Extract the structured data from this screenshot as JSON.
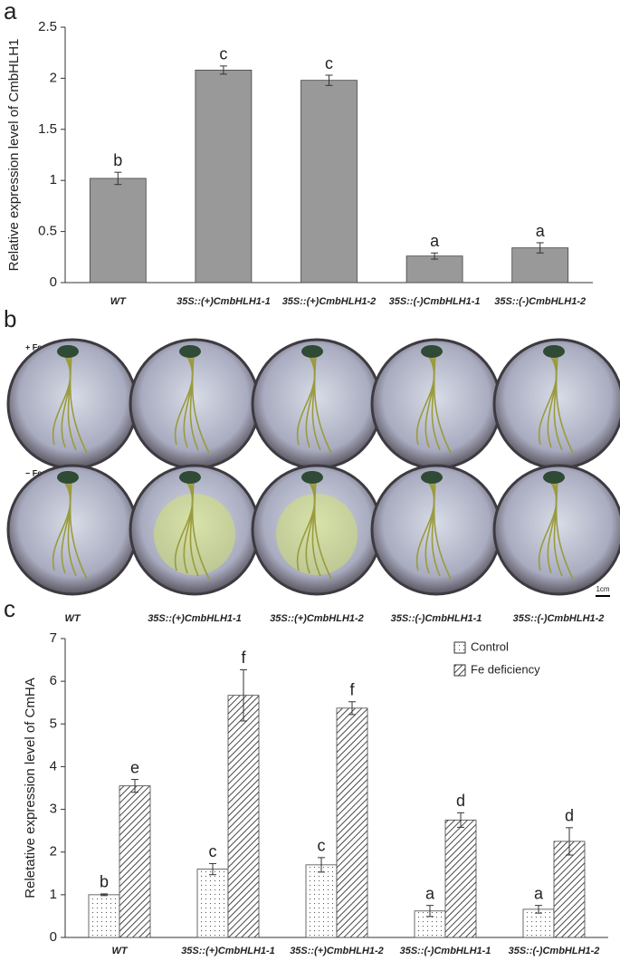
{
  "panel_labels": [
    "a",
    "b",
    "c"
  ],
  "chart_data": [
    {
      "type": "bar",
      "y_label": "Relative expression level of CmbHLH1",
      "categories": [
        "WT",
        "35S::(+)CmbHLH1-1",
        "35S::(+)CmbHLH1-2",
        "35S::(-)CmbHLH1-1",
        "35S::(-)CmbHLH1-2"
      ],
      "values": [
        1.02,
        2.08,
        1.98,
        0.26,
        0.34
      ],
      "errors": [
        0.06,
        0.04,
        0.05,
        0.03,
        0.05
      ],
      "significance": [
        "b",
        "c",
        "c",
        "a",
        "a"
      ],
      "color": "#999999",
      "ylim": [
        0,
        2.5
      ],
      "yticks": [
        0,
        0.5,
        1,
        1.5,
        2,
        2.5
      ]
    },
    {
      "type": "bar",
      "y_label": "Reletative expression level of CmHA",
      "categories": [
        "WT",
        "35S::(+)CmbHLH1-1",
        "35S::(+)CmbHLH1-2",
        "35S::(-)CmbHLH1-1",
        "35S::(-)CmbHLH1-2"
      ],
      "series": [
        {
          "name": "Control",
          "pattern": "dotted",
          "values": [
            1.0,
            1.6,
            1.7,
            0.62,
            0.66
          ],
          "errors": [
            0.02,
            0.13,
            0.17,
            0.13,
            0.09
          ],
          "significance": [
            "b",
            "c",
            "c",
            "a",
            "a"
          ]
        },
        {
          "name": "Fe deficiency",
          "pattern": "hatched",
          "values": [
            3.55,
            5.67,
            5.37,
            2.75,
            2.25
          ],
          "errors": [
            0.15,
            0.6,
            0.15,
            0.17,
            0.32
          ],
          "significance": [
            "e",
            "f",
            "f",
            "d",
            "d"
          ]
        }
      ],
      "legend": "top-right",
      "ylim": [
        0,
        7
      ],
      "yticks": [
        0,
        1,
        2,
        3,
        4,
        5,
        6,
        7
      ]
    }
  ],
  "photo_panel": {
    "row_labels": [
      "+ Fe",
      "− Fe"
    ],
    "columns": [
      "WT",
      "35S::(+)CmbHLH1-1",
      "35S::(+)CmbHLH1-2",
      "35S::(-)CmbHLH1-1",
      "35S::(-)CmbHLH1-2"
    ],
    "scale_bar": "1cm"
  }
}
